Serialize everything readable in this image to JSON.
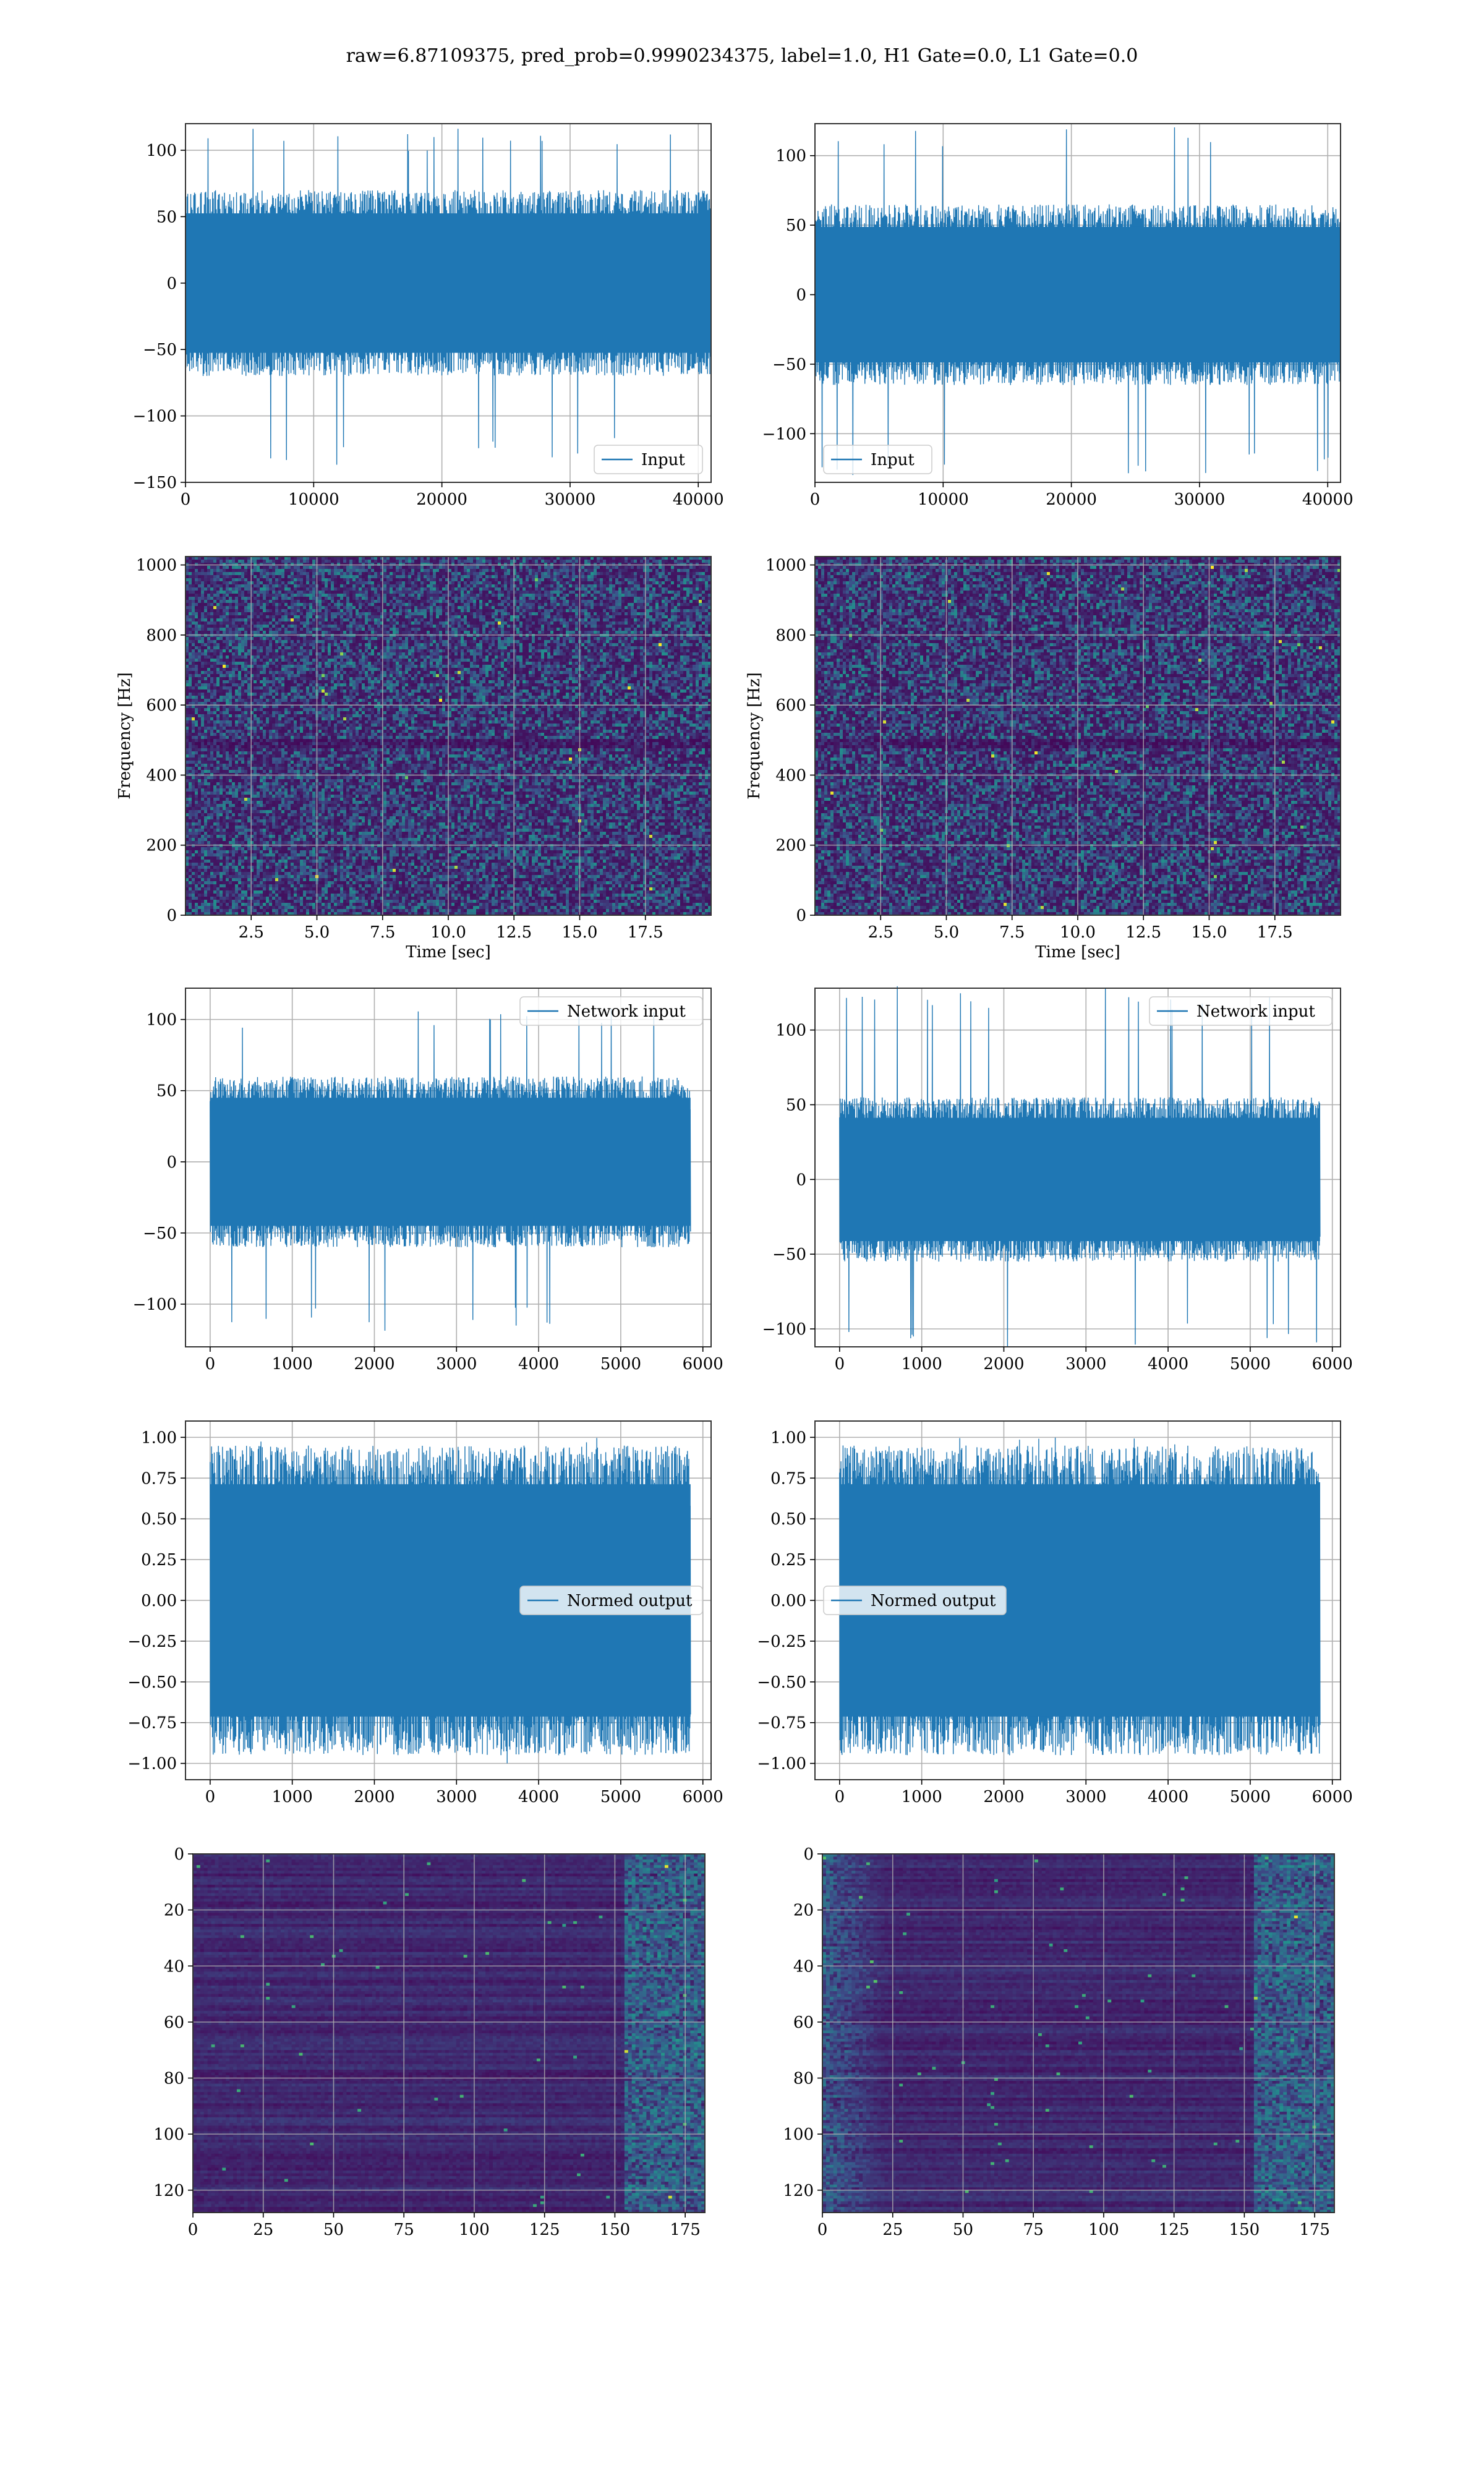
{
  "figure": {
    "title": "raw=6.87109375, pred_prob=0.9990234375, label=1.0, H1 Gate=0.0, L1 Gate=0.0"
  },
  "colors": {
    "series": "#1f77b4",
    "grid": "#b0b0b0",
    "heatmap": [
      "#440154",
      "#3b528b",
      "#21918c",
      "#5ec962",
      "#fde725"
    ]
  },
  "chart_data": [
    {
      "id": "raw-h1",
      "type": "line",
      "title": "",
      "xlabel": "",
      "ylabel": "",
      "xlim": [
        0,
        41000
      ],
      "ylim": [
        -150,
        120
      ],
      "x_range": [
        0,
        40960
      ],
      "xticks": [
        0,
        10000,
        20000,
        30000,
        40000
      ],
      "yticks": [
        -150,
        -100,
        -50,
        0,
        50,
        100
      ],
      "grid": true,
      "legend": "lower-right",
      "series": [
        {
          "name": "Input",
          "envelope_max": 117,
          "envelope_min": -137,
          "typical_amplitude": 70
        }
      ]
    },
    {
      "id": "raw-l1",
      "type": "line",
      "title": "",
      "xlabel": "",
      "ylabel": "",
      "xlim": [
        0,
        41000
      ],
      "ylim": [
        -135,
        123
      ],
      "x_range": [
        0,
        40960
      ],
      "xticks": [
        0,
        10000,
        20000,
        30000,
        40000
      ],
      "yticks": [
        -100,
        -50,
        0,
        50,
        100
      ],
      "grid": true,
      "legend": "lower-left",
      "series": [
        {
          "name": "Input",
          "envelope_max": 123,
          "envelope_min": -130,
          "typical_amplitude": 65
        }
      ]
    },
    {
      "id": "spec-h1",
      "type": "heatmap",
      "title": "",
      "xlabel": "Time [sec]",
      "ylabel": "Frequency [Hz]",
      "xlim": [
        0,
        20
      ],
      "ylim": [
        0,
        1024
      ],
      "xticks": [
        2.5,
        5.0,
        7.5,
        10.0,
        12.5,
        15.0,
        17.5
      ],
      "xtick_labels": [
        "2.5",
        "5.0",
        "7.5",
        "10.0",
        "12.5",
        "15.0",
        "17.5"
      ],
      "yticks": [
        0,
        200,
        400,
        600,
        800,
        1000
      ],
      "grid": true,
      "colormap": "viridis"
    },
    {
      "id": "spec-l1",
      "type": "heatmap",
      "title": "",
      "xlabel": "Time [sec]",
      "ylabel": "Frequency [Hz]",
      "xlim": [
        0,
        20
      ],
      "ylim": [
        0,
        1024
      ],
      "xticks": [
        2.5,
        5.0,
        7.5,
        10.0,
        12.5,
        15.0,
        17.5
      ],
      "xtick_labels": [
        "2.5",
        "5.0",
        "7.5",
        "10.0",
        "12.5",
        "15.0",
        "17.5"
      ],
      "yticks": [
        0,
        200,
        400,
        600,
        800,
        1000
      ],
      "grid": true,
      "colormap": "viridis"
    },
    {
      "id": "net-h1",
      "type": "line",
      "title": "",
      "xlabel": "",
      "ylabel": "",
      "xlim": [
        -300,
        6100
      ],
      "ylim": [
        -130,
        122
      ],
      "x_range": [
        0,
        5850
      ],
      "xticks": [
        0,
        1000,
        2000,
        3000,
        4000,
        5000,
        6000
      ],
      "yticks": [
        -100,
        -50,
        0,
        50,
        100
      ],
      "grid": true,
      "legend": "upper-right",
      "series": [
        {
          "name": "Network input",
          "envelope_max": 110,
          "envelope_min": -120,
          "typical_amplitude": 60
        }
      ]
    },
    {
      "id": "net-l1",
      "type": "line",
      "title": "",
      "xlabel": "",
      "ylabel": "",
      "xlim": [
        -300,
        6100
      ],
      "ylim": [
        -112,
        128
      ],
      "x_range": [
        0,
        5850
      ],
      "xticks": [
        0,
        1000,
        2000,
        3000,
        4000,
        5000,
        6000
      ],
      "yticks": [
        -100,
        -50,
        0,
        50,
        100
      ],
      "grid": true,
      "legend": "upper-right",
      "series": [
        {
          "name": "Network input",
          "envelope_max": 130,
          "envelope_min": -112,
          "typical_amplitude": 55
        }
      ]
    },
    {
      "id": "norm-h1",
      "type": "line",
      "title": "",
      "xlabel": "",
      "ylabel": "",
      "xlim": [
        -300,
        6100
      ],
      "ylim": [
        -1.1,
        1.1
      ],
      "x_range": [
        0,
        5850
      ],
      "xticks": [
        0,
        1000,
        2000,
        3000,
        4000,
        5000,
        6000
      ],
      "yticks": [
        -1.0,
        -0.75,
        -0.5,
        -0.25,
        0.0,
        0.25,
        0.5,
        0.75,
        1.0
      ],
      "ytick_labels": [
        "−1.00",
        "−0.75",
        "−0.50",
        "−0.25",
        "0.00",
        "0.25",
        "0.50",
        "0.75",
        "1.00"
      ],
      "grid": true,
      "legend": "center-right",
      "series": [
        {
          "name": "Normed output",
          "envelope_max": 1.0,
          "envelope_min": -1.0,
          "typical_amplitude": 0.95
        }
      ]
    },
    {
      "id": "norm-l1",
      "type": "line",
      "title": "",
      "xlabel": "",
      "ylabel": "",
      "xlim": [
        -300,
        6100
      ],
      "ylim": [
        -1.1,
        1.1
      ],
      "x_range": [
        0,
        5850
      ],
      "xticks": [
        0,
        1000,
        2000,
        3000,
        4000,
        5000,
        6000
      ],
      "yticks": [
        -1.0,
        -0.75,
        -0.5,
        -0.25,
        0.0,
        0.25,
        0.5,
        0.75,
        1.0
      ],
      "ytick_labels": [
        "−1.00",
        "−0.75",
        "−0.50",
        "−0.25",
        "0.00",
        "0.25",
        "0.50",
        "0.75",
        "1.00"
      ],
      "grid": true,
      "legend": "center-left",
      "series": [
        {
          "name": "Normed output",
          "envelope_max": 1.0,
          "envelope_min": -1.0,
          "typical_amplitude": 0.95
        }
      ]
    },
    {
      "id": "feat-h1",
      "type": "heatmap",
      "title": "",
      "xlabel": "",
      "ylabel": "",
      "xlim": [
        0,
        182
      ],
      "ylim": [
        128,
        0
      ],
      "xticks": [
        0,
        25,
        50,
        75,
        100,
        125,
        150,
        175
      ],
      "yticks": [
        0,
        20,
        40,
        60,
        80,
        100,
        120
      ],
      "grid": true,
      "colormap": "viridis"
    },
    {
      "id": "feat-l1",
      "type": "heatmap",
      "title": "",
      "xlabel": "",
      "ylabel": "",
      "xlim": [
        0,
        182
      ],
      "ylim": [
        128,
        0
      ],
      "xticks": [
        0,
        25,
        50,
        75,
        100,
        125,
        150,
        175
      ],
      "yticks": [
        0,
        20,
        40,
        60,
        80,
        100,
        120
      ],
      "grid": true,
      "colormap": "viridis"
    }
  ]
}
